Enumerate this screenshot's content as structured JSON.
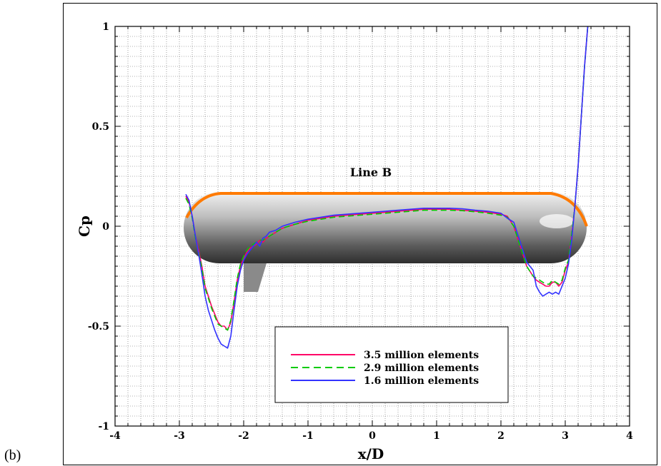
{
  "panel_label": "(b)",
  "chart_data": {
    "type": "line",
    "title": "",
    "xlabel": "x/D",
    "ylabel": "Cp",
    "xlim": [
      -4,
      4
    ],
    "ylim": [
      -1,
      1
    ],
    "xticks": [
      -4,
      -3,
      -2,
      -1,
      0,
      1,
      2,
      3,
      4
    ],
    "yticks": [
      -1,
      -0.5,
      0,
      0.5,
      1
    ],
    "xtick_labels": [
      "-4",
      "-3",
      "-2",
      "-1",
      "0",
      "1",
      "2",
      "3",
      "4"
    ],
    "ytick_labels": [
      "-1",
      "-0.5",
      "0",
      "0.5",
      "1"
    ],
    "grid": "dotted, minor every 0.2 (x) and 0.05 (y)",
    "annotation": "Line B",
    "legend_position": "lower-center",
    "series": [
      {
        "name": "3.5 million elements",
        "color": "#ff0066",
        "dash": "solid",
        "x": [
          -2.9,
          -2.85,
          -2.8,
          -2.75,
          -2.7,
          -2.65,
          -2.6,
          -2.55,
          -2.5,
          -2.45,
          -2.4,
          -2.35,
          -2.3,
          -2.25,
          -2.2,
          -2.15,
          -2.1,
          -2.05,
          -2.0,
          -1.95,
          -1.9,
          -1.85,
          -1.8,
          -1.75,
          -1.7,
          -1.65,
          -1.6,
          -1.5,
          -1.4,
          -1.3,
          -1.2,
          -1.0,
          -0.8,
          -0.6,
          -0.4,
          -0.2,
          0.0,
          0.2,
          0.4,
          0.6,
          0.8,
          1.0,
          1.2,
          1.4,
          1.6,
          1.8,
          2.0,
          2.1,
          2.2,
          2.3,
          2.4,
          2.5,
          2.55,
          2.6,
          2.65,
          2.7,
          2.75,
          2.8,
          2.85,
          2.9,
          2.95,
          3.0,
          3.05,
          3.1,
          3.15,
          3.2,
          3.25,
          3.3,
          3.35
        ],
        "y": [
          0.15,
          0.12,
          0.05,
          -0.05,
          -0.12,
          -0.2,
          -0.3,
          -0.35,
          -0.4,
          -0.44,
          -0.48,
          -0.5,
          -0.5,
          -0.52,
          -0.48,
          -0.38,
          -0.27,
          -0.2,
          -0.16,
          -0.13,
          -0.11,
          -0.1,
          -0.09,
          -0.07,
          -0.08,
          -0.06,
          -0.05,
          -0.03,
          -0.01,
          0.0,
          0.01,
          0.03,
          0.04,
          0.05,
          0.055,
          0.06,
          0.065,
          0.07,
          0.075,
          0.08,
          0.085,
          0.085,
          0.085,
          0.08,
          0.075,
          0.07,
          0.06,
          0.05,
          0.0,
          -0.1,
          -0.2,
          -0.25,
          -0.27,
          -0.28,
          -0.29,
          -0.3,
          -0.3,
          -0.28,
          -0.28,
          -0.3,
          -0.28,
          -0.22,
          -0.18,
          -0.05,
          0.1,
          0.3,
          0.55,
          0.8,
          1.0
        ]
      },
      {
        "name": "2.9 million elements",
        "color": "#00cc00",
        "dash": "dashed",
        "x": [
          -2.9,
          -2.85,
          -2.8,
          -2.75,
          -2.7,
          -2.65,
          -2.6,
          -2.55,
          -2.5,
          -2.45,
          -2.4,
          -2.35,
          -2.3,
          -2.25,
          -2.2,
          -2.15,
          -2.1,
          -2.05,
          -2.0,
          -1.95,
          -1.9,
          -1.85,
          -1.8,
          -1.75,
          -1.7,
          -1.65,
          -1.6,
          -1.5,
          -1.4,
          -1.3,
          -1.2,
          -1.0,
          -0.8,
          -0.6,
          -0.4,
          -0.2,
          0.0,
          0.2,
          0.4,
          0.6,
          0.8,
          1.0,
          1.2,
          1.4,
          1.6,
          1.8,
          2.0,
          2.1,
          2.2,
          2.3,
          2.4,
          2.5,
          2.55,
          2.6,
          2.65,
          2.7,
          2.75,
          2.8,
          2.85,
          2.9,
          2.95,
          3.0,
          3.05,
          3.1,
          3.15,
          3.2,
          3.25,
          3.3,
          3.35
        ],
        "y": [
          0.14,
          0.11,
          0.04,
          -0.06,
          -0.13,
          -0.21,
          -0.31,
          -0.36,
          -0.41,
          -0.45,
          -0.49,
          -0.5,
          -0.51,
          -0.52,
          -0.47,
          -0.37,
          -0.26,
          -0.19,
          -0.15,
          -0.12,
          -0.1,
          -0.09,
          -0.08,
          -0.07,
          -0.07,
          -0.06,
          -0.05,
          -0.03,
          -0.01,
          0.0,
          0.01,
          0.025,
          0.035,
          0.045,
          0.05,
          0.055,
          0.06,
          0.065,
          0.07,
          0.075,
          0.08,
          0.08,
          0.08,
          0.078,
          0.072,
          0.065,
          0.055,
          0.045,
          0.0,
          -0.1,
          -0.2,
          -0.25,
          -0.26,
          -0.27,
          -0.28,
          -0.29,
          -0.29,
          -0.27,
          -0.28,
          -0.29,
          -0.27,
          -0.21,
          -0.17,
          -0.04,
          0.1,
          0.3,
          0.55,
          0.8,
          1.0
        ]
      },
      {
        "name": "1.6 million elements",
        "color": "#3333ff",
        "dash": "solid",
        "x": [
          -2.9,
          -2.85,
          -2.8,
          -2.75,
          -2.7,
          -2.65,
          -2.6,
          -2.55,
          -2.5,
          -2.45,
          -2.4,
          -2.35,
          -2.3,
          -2.25,
          -2.2,
          -2.15,
          -2.1,
          -2.05,
          -2.0,
          -1.95,
          -1.9,
          -1.85,
          -1.8,
          -1.75,
          -1.7,
          -1.65,
          -1.6,
          -1.5,
          -1.4,
          -1.3,
          -1.2,
          -1.0,
          -0.8,
          -0.6,
          -0.4,
          -0.2,
          0.0,
          0.2,
          0.4,
          0.6,
          0.8,
          1.0,
          1.2,
          1.4,
          1.6,
          1.8,
          2.0,
          2.1,
          2.2,
          2.3,
          2.4,
          2.5,
          2.55,
          2.6,
          2.65,
          2.7,
          2.75,
          2.8,
          2.85,
          2.9,
          2.95,
          3.0,
          3.05,
          3.1,
          3.15,
          3.2,
          3.25,
          3.3,
          3.35
        ],
        "y": [
          0.16,
          0.13,
          0.05,
          -0.05,
          -0.14,
          -0.24,
          -0.35,
          -0.42,
          -0.47,
          -0.52,
          -0.56,
          -0.59,
          -0.6,
          -0.61,
          -0.55,
          -0.42,
          -0.3,
          -0.22,
          -0.17,
          -0.14,
          -0.12,
          -0.1,
          -0.08,
          -0.1,
          -0.06,
          -0.05,
          -0.03,
          -0.02,
          0.0,
          0.01,
          0.02,
          0.035,
          0.045,
          0.055,
          0.06,
          0.065,
          0.07,
          0.075,
          0.08,
          0.085,
          0.09,
          0.09,
          0.09,
          0.087,
          0.08,
          0.075,
          0.065,
          0.04,
          0.02,
          -0.08,
          -0.18,
          -0.22,
          -0.3,
          -0.33,
          -0.35,
          -0.34,
          -0.33,
          -0.34,
          -0.33,
          -0.34,
          -0.3,
          -0.26,
          -0.19,
          -0.07,
          0.1,
          0.3,
          0.55,
          0.8,
          1.0
        ]
      }
    ]
  }
}
